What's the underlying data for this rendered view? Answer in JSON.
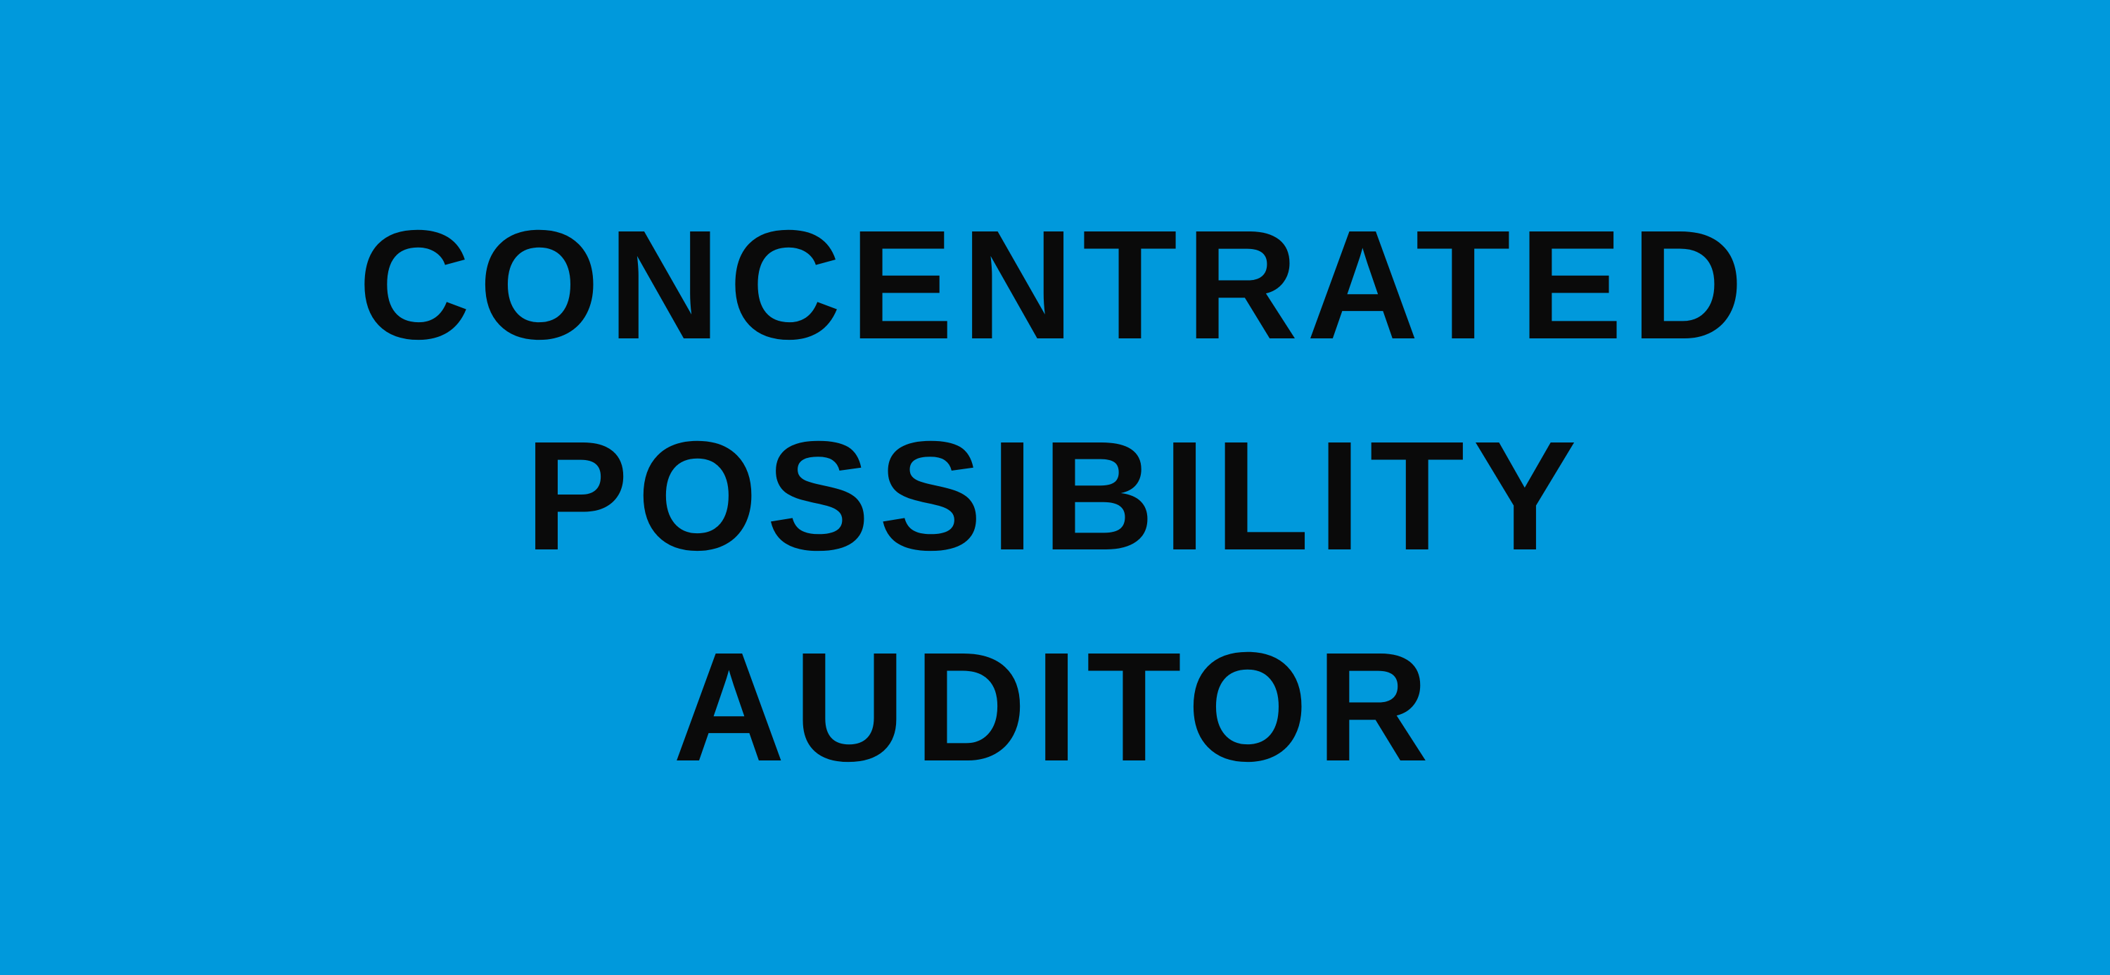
{
  "background_color": "#0099dc",
  "text_color": "#0a0a0a",
  "title_lines": [
    "CONCENTRATED",
    "POSSIBILITY",
    "AUDITOR"
  ]
}
